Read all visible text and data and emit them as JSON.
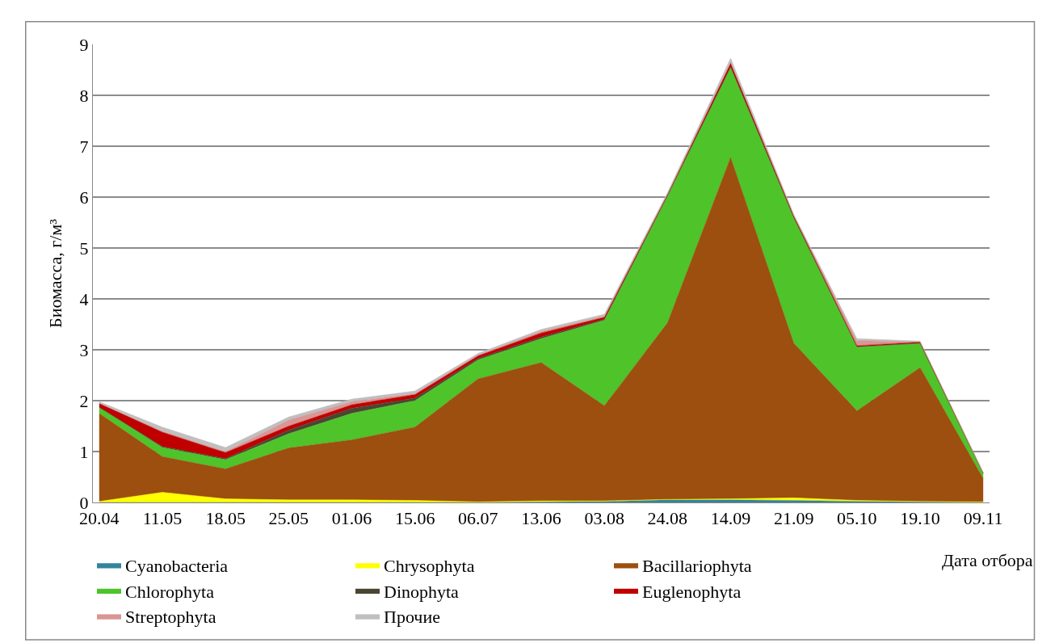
{
  "chart_data": {
    "type": "area",
    "stacked": true,
    "xlabel": "Дата отбора",
    "ylabel": "Биомасса, г/м³",
    "categories": [
      "20.04",
      "11.05",
      "18.05",
      "25.05",
      "01.06",
      "15.06",
      "06.07",
      "13.06",
      "03.08",
      "24.08",
      "14.09",
      "21.09",
      "05.10",
      "19.10",
      "09.11"
    ],
    "series": [
      {
        "name": "Cyanobacteria",
        "color": "#31859c",
        "values": [
          0,
          0,
          0,
          0,
          0,
          0,
          0,
          0.01,
          0.02,
          0.05,
          0.05,
          0.04,
          0.02,
          0.01,
          0
        ]
      },
      {
        "name": "Chrysophyta",
        "color": "#ffff00",
        "values": [
          0.02,
          0.2,
          0.07,
          0.05,
          0.05,
          0.04,
          0.01,
          0.02,
          0.01,
          0.01,
          0.02,
          0.05,
          0.02,
          0.01,
          0.01
        ]
      },
      {
        "name": "Bacillariophyta",
        "color": "#9c4f0e",
        "values": [
          1.73,
          0.7,
          0.59,
          1.02,
          1.18,
          1.44,
          2.42,
          2.72,
          1.87,
          3.47,
          6.71,
          3.04,
          1.76,
          2.63,
          0.46
        ]
      },
      {
        "name": "Chlorophyta",
        "color": "#4ec42a",
        "values": [
          0.12,
          0.18,
          0.18,
          0.28,
          0.52,
          0.52,
          0.37,
          0.47,
          1.68,
          2.49,
          1.77,
          2.47,
          1.26,
          0.48,
          0.1
        ]
      },
      {
        "name": "Dinophyta",
        "color": "#4a4632",
        "values": [
          0,
          0.02,
          0.02,
          0.07,
          0.1,
          0.05,
          0.03,
          0.03,
          0.02,
          0.01,
          0.01,
          0,
          0,
          0,
          0
        ]
      },
      {
        "name": "Euglenophyta",
        "color": "#c00000",
        "values": [
          0.08,
          0.28,
          0.12,
          0.08,
          0.07,
          0.07,
          0.05,
          0.08,
          0.04,
          0.02,
          0.07,
          0.03,
          0.02,
          0.02,
          0.01
        ]
      },
      {
        "name": "Streptophyta",
        "color": "#d99694",
        "values": [
          0,
          0.02,
          0.02,
          0.12,
          0.06,
          0.02,
          0.02,
          0.03,
          0.02,
          0.01,
          0.02,
          0.01,
          0.1,
          0.01,
          0
        ]
      },
      {
        "name": "Прочие",
        "color": "#bfbfbf",
        "values": [
          0.03,
          0.08,
          0.08,
          0.06,
          0.05,
          0.05,
          0.03,
          0.04,
          0.04,
          0.03,
          0.08,
          0.02,
          0.04,
          0.01,
          0.01
        ]
      }
    ],
    "ylim": [
      0,
      9
    ],
    "yticks": [
      0,
      1,
      2,
      3,
      4,
      5,
      6,
      7,
      8,
      9
    ],
    "grid": "y",
    "legend": "bottom"
  }
}
